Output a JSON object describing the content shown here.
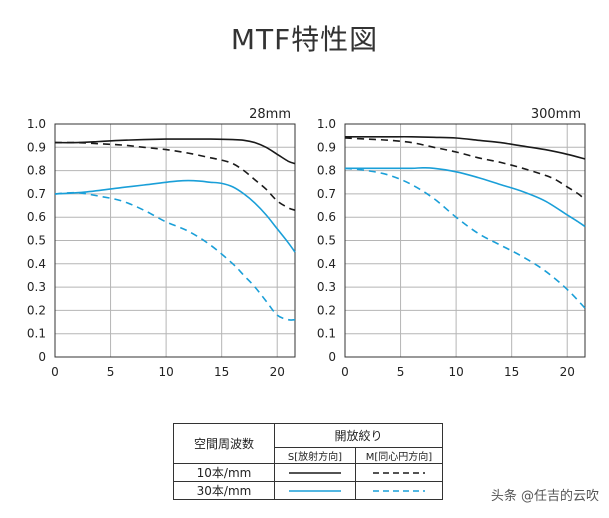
{
  "title": "MTF特性図",
  "chart_data": [
    {
      "type": "line",
      "title": "28mm",
      "xlim": [
        0,
        21.6
      ],
      "ylim": [
        0,
        1.0
      ],
      "xticks": [
        0,
        5,
        10,
        15,
        20
      ],
      "yticks": [
        "0",
        "0.1",
        "0.2",
        "0.3",
        "0.4",
        "0.5",
        "0.6",
        "0.7",
        "0.8",
        "0.9",
        "1.0"
      ],
      "grid": true,
      "series": [
        {
          "name": "10本/mm S",
          "color": "#1a1a1a",
          "dash": false,
          "x": [
            0,
            2,
            4,
            6,
            8,
            10,
            12,
            14,
            16,
            17,
            18,
            19,
            20,
            21,
            21.6
          ],
          "y": [
            0.92,
            0.92,
            0.925,
            0.93,
            0.933,
            0.935,
            0.935,
            0.935,
            0.933,
            0.93,
            0.92,
            0.9,
            0.87,
            0.84,
            0.83
          ]
        },
        {
          "name": "10本/mm M",
          "color": "#1a1a1a",
          "dash": true,
          "x": [
            0,
            2,
            4,
            6,
            8,
            10,
            12,
            14,
            15,
            16,
            17,
            18,
            19,
            20,
            21,
            21.6
          ],
          "y": [
            0.92,
            0.92,
            0.915,
            0.91,
            0.9,
            0.89,
            0.875,
            0.855,
            0.845,
            0.83,
            0.8,
            0.76,
            0.72,
            0.67,
            0.64,
            0.63
          ]
        },
        {
          "name": "30本/mm S",
          "color": "#1a9fd8",
          "dash": false,
          "x": [
            0,
            2,
            4,
            6,
            8,
            10,
            11,
            12,
            13,
            14,
            15,
            16,
            17,
            18,
            19,
            20,
            21,
            21.6
          ],
          "y": [
            0.7,
            0.705,
            0.715,
            0.727,
            0.738,
            0.75,
            0.755,
            0.757,
            0.755,
            0.75,
            0.745,
            0.73,
            0.7,
            0.66,
            0.61,
            0.55,
            0.49,
            0.45
          ]
        },
        {
          "name": "30本/mm M",
          "color": "#1a9fd8",
          "dash": true,
          "x": [
            0,
            2,
            4,
            6,
            8,
            10,
            12,
            14,
            16,
            17,
            18,
            19,
            20,
            21,
            21.6
          ],
          "y": [
            0.7,
            0.705,
            0.69,
            0.67,
            0.63,
            0.58,
            0.54,
            0.48,
            0.4,
            0.35,
            0.3,
            0.24,
            0.18,
            0.16,
            0.16
          ]
        }
      ]
    },
    {
      "type": "line",
      "title": "300mm",
      "xlim": [
        0,
        21.6
      ],
      "ylim": [
        0,
        1.0
      ],
      "xticks": [
        0,
        5,
        10,
        15,
        20
      ],
      "yticks": [
        "0",
        "0.1",
        "0.2",
        "0.3",
        "0.4",
        "0.5",
        "0.6",
        "0.7",
        "0.8",
        "0.9",
        "1.0"
      ],
      "grid": true,
      "series": [
        {
          "name": "10本/mm S",
          "color": "#1a1a1a",
          "dash": false,
          "x": [
            0,
            2,
            4,
            6,
            8,
            10,
            12,
            14,
            16,
            18,
            20,
            21.6
          ],
          "y": [
            0.945,
            0.945,
            0.945,
            0.945,
            0.943,
            0.94,
            0.93,
            0.92,
            0.905,
            0.89,
            0.87,
            0.85
          ]
        },
        {
          "name": "10本/mm M",
          "color": "#1a1a1a",
          "dash": true,
          "x": [
            0,
            2,
            4,
            6,
            8,
            10,
            12,
            14,
            16,
            18,
            19,
            20,
            21,
            21.6
          ],
          "y": [
            0.94,
            0.935,
            0.93,
            0.92,
            0.9,
            0.88,
            0.855,
            0.835,
            0.81,
            0.78,
            0.76,
            0.73,
            0.7,
            0.675
          ]
        },
        {
          "name": "30本/mm S",
          "color": "#1a9fd8",
          "dash": false,
          "x": [
            0,
            2,
            4,
            6,
            7,
            8,
            10,
            12,
            14,
            16,
            18,
            20,
            21,
            21.6
          ],
          "y": [
            0.81,
            0.81,
            0.81,
            0.81,
            0.812,
            0.81,
            0.795,
            0.77,
            0.74,
            0.71,
            0.67,
            0.61,
            0.58,
            0.56
          ]
        },
        {
          "name": "30本/mm M",
          "color": "#1a9fd8",
          "dash": true,
          "x": [
            0,
            2,
            4,
            6,
            8,
            10,
            12,
            14,
            16,
            18,
            20,
            21.6
          ],
          "y": [
            0.81,
            0.8,
            0.78,
            0.74,
            0.68,
            0.6,
            0.53,
            0.48,
            0.43,
            0.37,
            0.29,
            0.21
          ]
        }
      ]
    }
  ],
  "legend": {
    "col1_header": "空間周波数",
    "col2_header": "開放絞り",
    "s_label": "S[放射方向]",
    "m_label": "M[同心円方向]",
    "row1_label": "10本/mm",
    "row2_label": "30本/mm",
    "color_black": "#1a1a1a",
    "color_blue": "#1a9fd8"
  },
  "watermark": "头条 @任吉的云吹"
}
